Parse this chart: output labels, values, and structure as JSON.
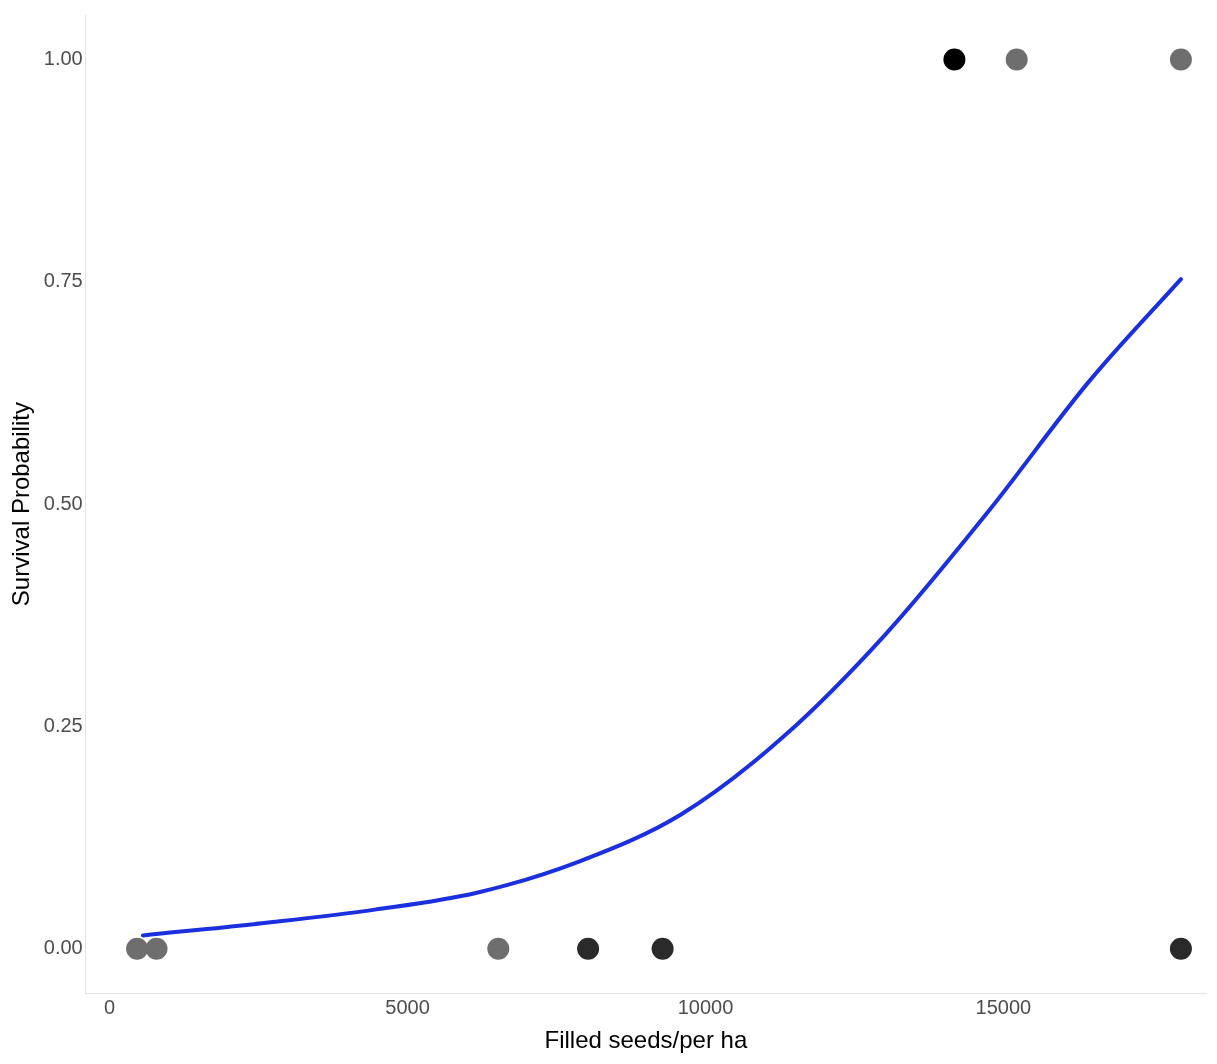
{
  "chart_data": {
    "type": "scatter",
    "xlabel": "Filled seeds/per ha",
    "ylabel": "Survival Probability",
    "xlim": [
      -400,
      18400
    ],
    "ylim": [
      -0.05,
      1.05
    ],
    "xticks": [
      0,
      5000,
      10000,
      15000
    ],
    "yticks": [
      {
        "value": 0,
        "label": "0.00"
      },
      {
        "value": 0.25,
        "label": "0.25"
      },
      {
        "value": 0.5,
        "label": "0.50"
      },
      {
        "value": 0.75,
        "label": "0.75"
      },
      {
        "value": 1,
        "label": "1.00"
      }
    ],
    "grid": false,
    "legend": false,
    "marker": "circle",
    "series": [
      {
        "type": "scatter",
        "x": [
          462,
          788,
          6524,
          8031,
          9281,
          17979,
          14178,
          15223,
          17979
        ],
        "values": [
          0,
          0,
          0,
          0,
          0,
          0,
          1,
          1,
          1
        ],
        "colors": [
          "#6e6e6e",
          "#6e6e6e",
          "#6e6e6e",
          "#2a2a2a",
          "#2a2a2a",
          "#2a2a2a",
          "#000000",
          "#6e6e6e",
          "#6e6e6e"
        ]
      },
      {
        "type": "line",
        "color": "#1a2fe0",
        "marker": "none",
        "line_style": "solid",
        "x": [
          560,
          2740,
          4452,
          6164,
          7877,
          9589,
          11301,
          13014,
          14726,
          16438,
          17979
        ],
        "values": [
          0.015,
          0.03,
          0.044,
          0.063,
          0.098,
          0.151,
          0.238,
          0.353,
          0.49,
          0.638,
          0.753
        ]
      }
    ]
  }
}
